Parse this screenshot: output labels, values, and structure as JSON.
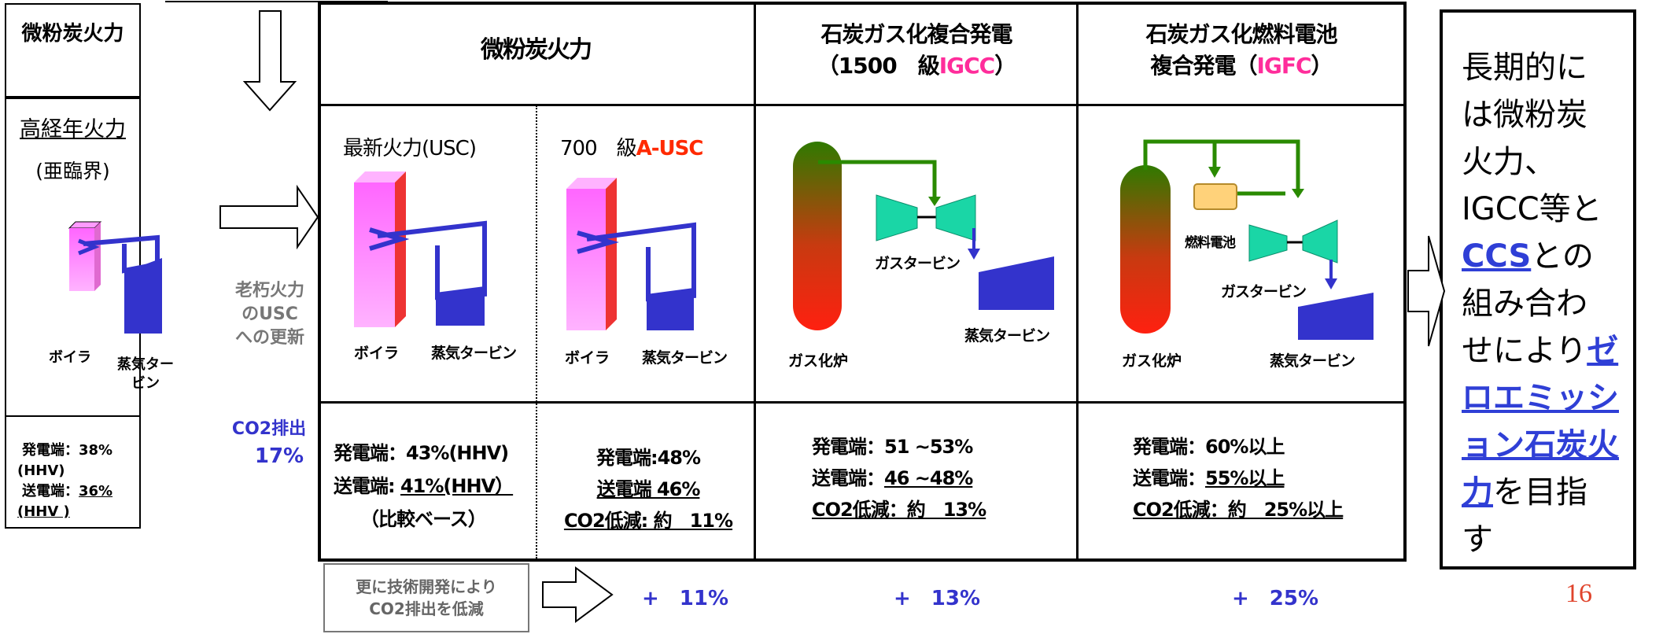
{
  "left_panel": {
    "title": "微粉炭火力",
    "old_plant_label": "高経年火力",
    "old_plant_sub": "(亜臨界)",
    "boiler_label": "ボイラ",
    "turbine_label": "蒸気ター\nビン",
    "eff_send_prefix": "発電端：",
    "eff_send_value": "38%",
    "eff_send_unit": "(HHV)",
    "eff_trans_prefix": "送電端：",
    "eff_trans_value": "36%",
    "eff_trans_unit": "(HHV )"
  },
  "middle_labels": {
    "upgrade_label": "老朽火力\nのUSC\nへの更新",
    "co2_label": "CO2排出",
    "co2_value": "17%"
  },
  "table": {
    "col1_header": "微粉炭火力",
    "col2_header_line1": "石炭ガス化複合発電",
    "col2_header_line2_pre": "（1500　級",
    "col2_header_line2_hl": "IGCC",
    "col2_header_line2_post": "）",
    "col3_header_line1": "石炭ガス化燃料電池",
    "col3_header_line2_pre": "複合発電（",
    "col3_header_line2_hl": "IGFC",
    "col3_header_line2_post": "）",
    "usc": {
      "title": "最新火力(USC)",
      "boiler_label": "ボイラ",
      "turbine_label": "蒸気タービン",
      "eff_line1": "発電端：43%(HHV)",
      "eff_line2_pre": "送電端:",
      "eff_line2_u": "41%(HHV）",
      "eff_line3": "（比較ベース）"
    },
    "ausc": {
      "title_pre": "700　級",
      "title_hl": "A-USC",
      "boiler_label": "ボイラ",
      "turbine_label": "蒸気タービン",
      "eff_line1": "発電端:48%",
      "eff_line2": "送電端 46%",
      "eff_line3": "CO2低減: 約　11%"
    },
    "igcc": {
      "gas_turbine_label": "ガスタービン",
      "steam_turbine_label": "蒸気タービン",
      "gasifier_label": "ガス化炉",
      "eff_line1": "発電端：51 ~53%",
      "eff_line2_pre": "送電端：",
      "eff_line2_u": "46 ~48%",
      "eff_line3": "CO2低減：約　13%"
    },
    "igfc": {
      "fuel_cell_label": "燃料電池",
      "gas_turbine_label": "ガスタービン",
      "steam_turbine_label": "蒸気タービン",
      "gasifier_label": "ガス化炉",
      "eff_line1": "発電端：60%以上",
      "eff_line2_pre": "送電端：",
      "eff_line2_u": "55%以上",
      "eff_line3": "CO2低減：約　25%以上"
    }
  },
  "bottom": {
    "tech_label": "更に技術開発により\nCO2排出を低減",
    "plus1": "+　11%",
    "plus2": "+　13%",
    "plus3": "+　25%"
  },
  "right_panel": {
    "text1": "長期的に\nは微粉炭\n火力、\nIGCC等と\n",
    "link1": "CCS",
    "text2": "との\n組み合わ\nせにより",
    "link2": "ゼロエミッション石炭火力",
    "text3": "を目指\nす"
  },
  "page_number": "16",
  "colors": {
    "pink_highlight": "#ff2d9b",
    "red_highlight": "#ff2a00",
    "blue_text": "#3333cc",
    "pipe_blue": "#3333cc",
    "pipe_green": "#2a8a00",
    "turbine_teal": "#1ad6a6",
    "fuel_cell_yellow": "#ffd27a",
    "page_number_red": "#e0442c"
  }
}
